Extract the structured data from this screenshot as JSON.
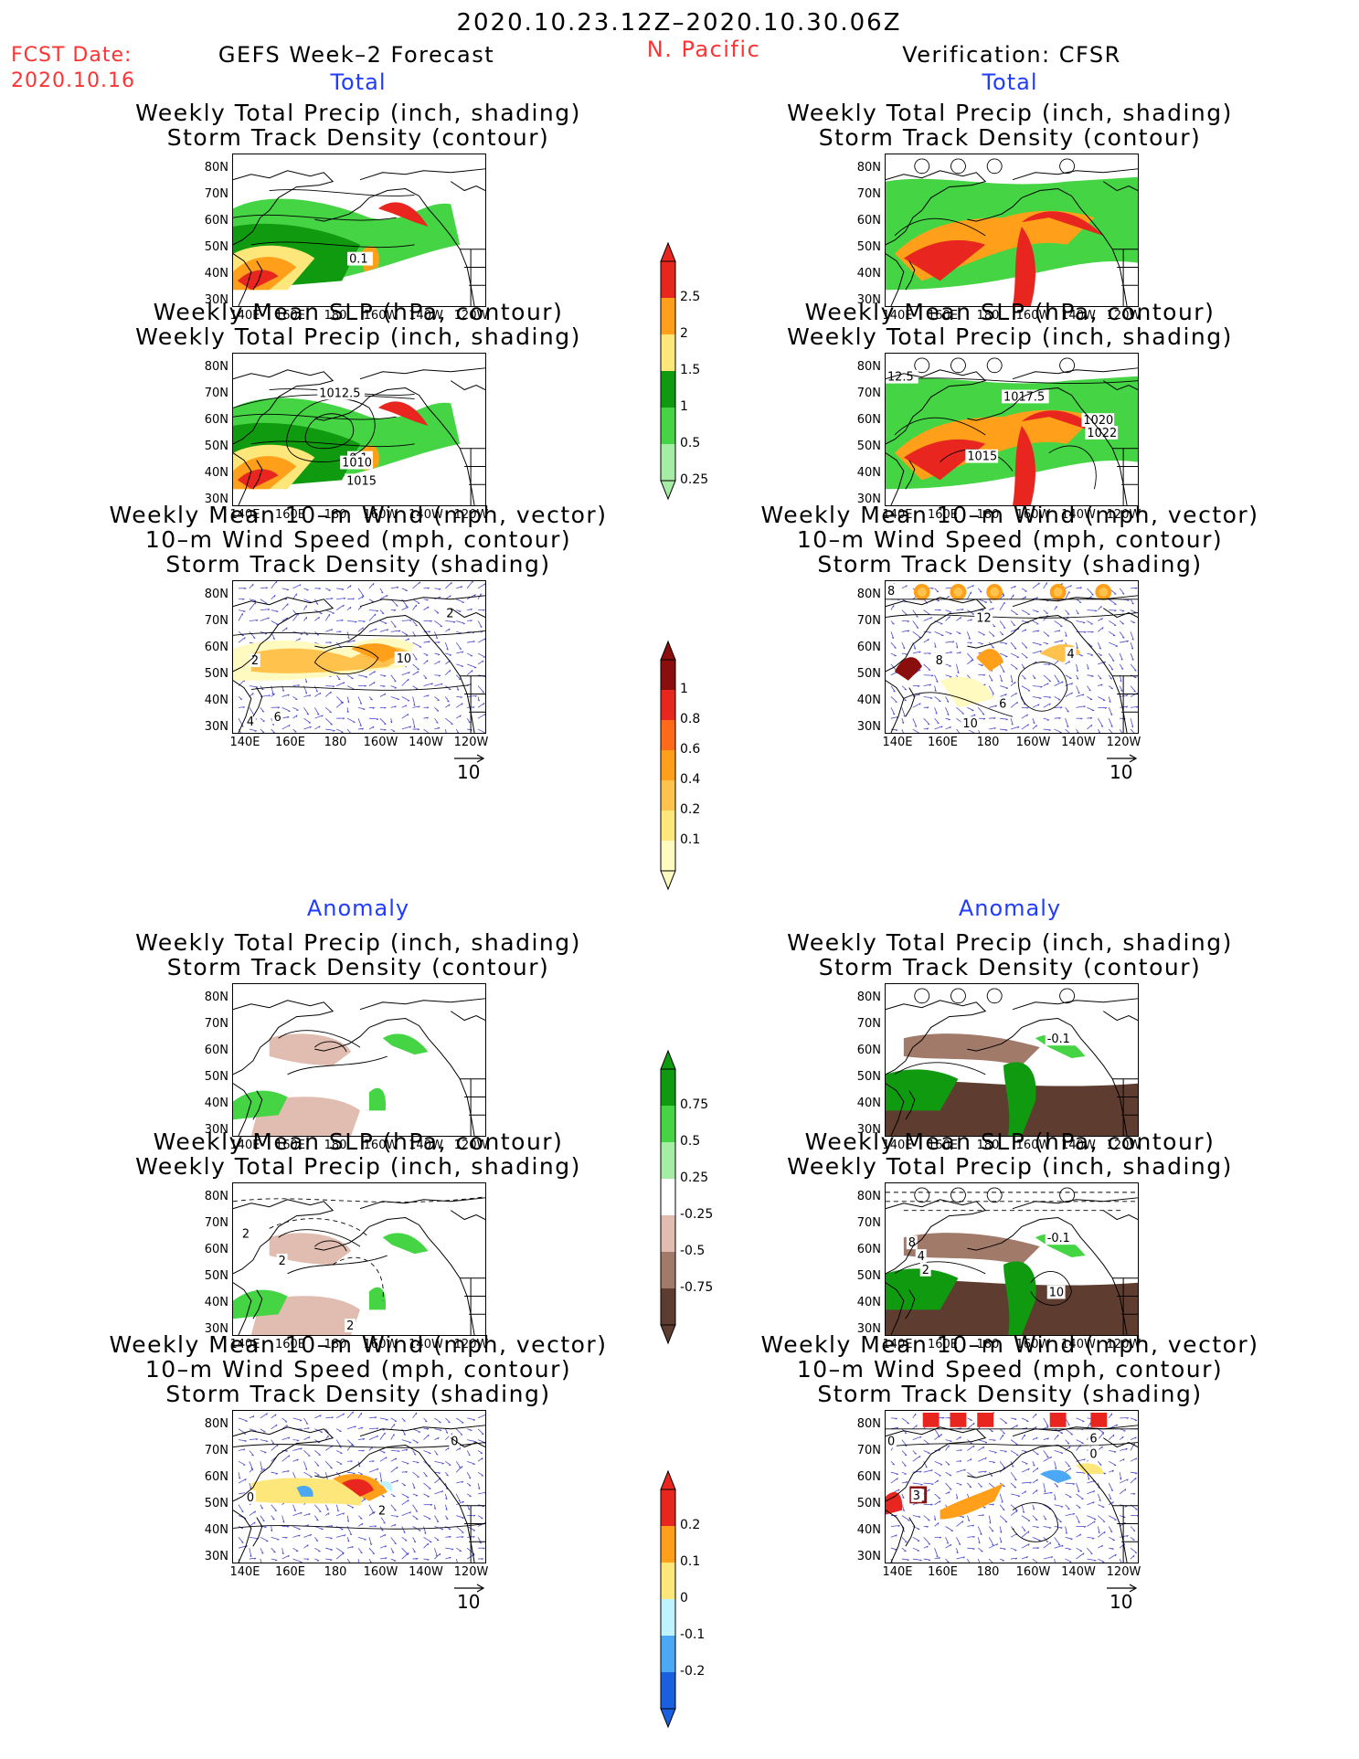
{
  "header": {
    "period": "2020.10.23.12Z–2020.10.30.06Z",
    "fcst_label": "FCST Date:",
    "fcst_date": "2020.10.16",
    "forecast_title": "GEFS Week–2 Forecast",
    "region": "N. Pacific",
    "verification_title": "Verification: CFSR"
  },
  "sections": {
    "total": "Total",
    "anomaly": "Anomaly"
  },
  "titles": {
    "precip_storm": [
      "Weekly Total Precip (inch, shading)",
      "Storm Track Density (contour)"
    ],
    "slp_precip": [
      "Weekly Mean SLP (hPa, contour)",
      "Weekly Total Precip (inch, shading)"
    ],
    "wind_storm": [
      "Weekly Mean 10–m Wind (mph, vector)",
      "10–m Wind Speed (mph, contour)",
      "Storm Track Density (shading)"
    ]
  },
  "axes": {
    "lat": [
      "80N",
      "70N",
      "60N",
      "50N",
      "40N",
      "30N"
    ],
    "lon": [
      "140E",
      "160E",
      "180",
      "160W",
      "140W",
      "120W"
    ]
  },
  "vector_ref": "10",
  "contour_labels": {
    "f1": [
      "0.1"
    ],
    "f2": [
      "1012.5",
      "1010",
      "1015"
    ],
    "f3": [
      "2",
      "10",
      "4",
      "6",
      "2"
    ],
    "v2": [
      "12.5",
      "1017.5",
      "1020",
      "1022",
      "1015"
    ],
    "v3": [
      "8",
      "12",
      "8",
      "6",
      "10",
      "4"
    ],
    "a5f": [
      "2",
      "2",
      "2"
    ],
    "a5v": [
      "8",
      "4",
      "2",
      "10"
    ],
    "a6f": [
      "0",
      "0",
      "2"
    ],
    "a6v": [
      "0",
      "6",
      "0",
      "3"
    ],
    "a1v": [
      "-0.1"
    ]
  },
  "colorbars": {
    "total_precip": {
      "labels": [
        "2.5",
        "2",
        "1.5",
        "1",
        "0.5",
        "0.25"
      ],
      "colors": [
        "#e8261f",
        "#ff9f1a",
        "#fee77a",
        "#109a10",
        "#44d444",
        "#a5eca5"
      ]
    },
    "storm_density": {
      "labels": [
        "1",
        "0.8",
        "0.6",
        "0.4",
        "0.2",
        "0.1"
      ],
      "colors": [
        "#8b0e0e",
        "#e8261f",
        "#ff6a1a",
        "#ff9f1a",
        "#ffc24d",
        "#fee77a",
        "#fffbc0"
      ]
    },
    "precip_anomaly": {
      "labels": [
        "0.75",
        "0.5",
        "0.25",
        "-0.25",
        "-0.5",
        "-0.75"
      ],
      "colors": [
        "#109a10",
        "#44d444",
        "#a5eca5",
        "#ffffff",
        "#e0bdb0",
        "#a27a6a",
        "#5e3d30"
      ]
    },
    "storm_anomaly": {
      "labels": [
        "0.2",
        "0.1",
        "0",
        "-0.1",
        "-0.2"
      ],
      "colors": [
        "#e8261f",
        "#ff9f1a",
        "#fee77a",
        "#bff3ff",
        "#4aa8f5",
        "#1a5fe0"
      ]
    }
  }
}
